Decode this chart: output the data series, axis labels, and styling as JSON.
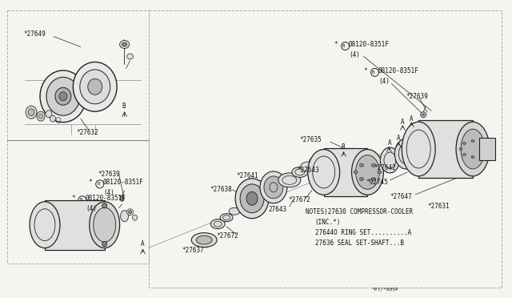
{
  "bg_color": "#f5f5f0",
  "line_color": "#222222",
  "text_color": "#111111",
  "border_dash_color": "#555555",
  "parts_color": "#111111",
  "fill_light": "#dddddd",
  "fill_mid": "#bbbbbb",
  "fill_dark": "#888888",
  "ref_text": "^P7/*005P",
  "notes": [
    "NOTES)27630 COMPRESSOR-COOLER",
    "(INC.*)",
    "27644O RING SET..........A",
    "27636 SEAL SET-SHAFT...B"
  ],
  "font_size_label": 5.5,
  "font_size_note": 5.5,
  "font_size_ref": 4.5
}
